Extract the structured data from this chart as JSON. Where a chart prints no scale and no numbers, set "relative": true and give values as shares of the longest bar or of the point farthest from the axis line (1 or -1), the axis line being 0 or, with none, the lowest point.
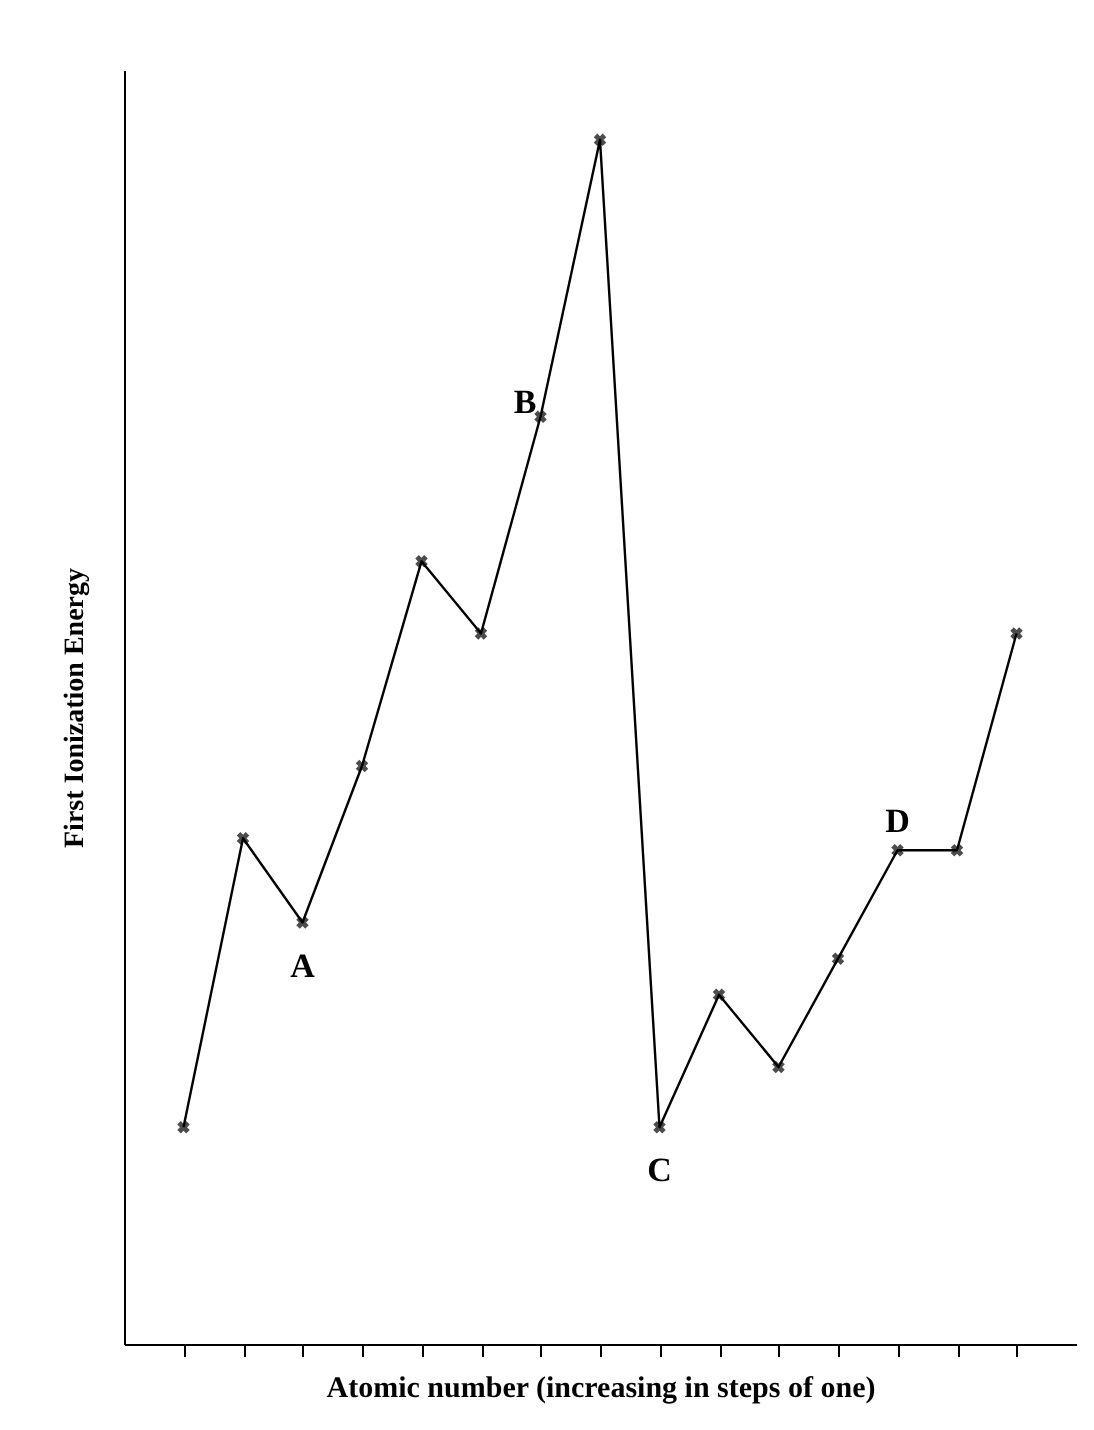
{
  "chart_data": {
    "type": "line",
    "xlabel": "Atomic number (increasing in steps of one)",
    "ylabel": "First Ionization Energy",
    "relative": true,
    "categories": [
      null,
      null,
      null,
      null,
      null,
      null,
      null,
      null,
      null,
      null,
      null,
      null,
      null,
      null,
      null
    ],
    "series": [
      {
        "color": "#000000",
        "values": [
          0.18,
          0.42,
          0.35,
          0.48,
          0.65,
          0.59,
          0.77,
          1,
          0.18,
          0.29,
          0.23,
          0.32,
          0.41,
          0.41,
          0.59
        ]
      }
    ],
    "annotations": [
      {
        "text": "A",
        "y": 0.35
      },
      {
        "text": "B",
        "y": 0.77
      },
      {
        "text": "C",
        "y": 0.18
      },
      {
        "text": "D",
        "y": 0.41
      }
    ],
    "marker": "cross",
    "line_style": "solid"
  }
}
